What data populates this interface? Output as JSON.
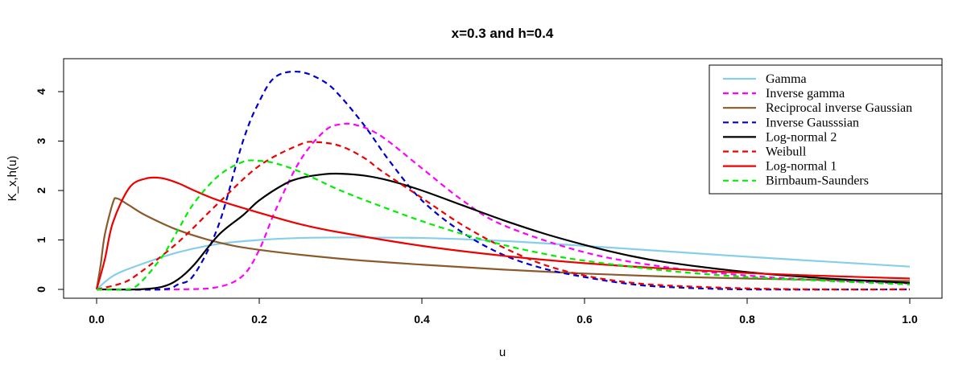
{
  "chart_data": {
    "type": "line",
    "title": "x=0.3 and h=0.4",
    "xlabel": "u",
    "ylabel": "K_x,h(u)",
    "xlim": [
      0.0,
      1.0
    ],
    "ylim": [
      0,
      4.5
    ],
    "x_ticks": [
      "0.0",
      "0.2",
      "0.4",
      "0.6",
      "0.8",
      "1.0"
    ],
    "y_ticks": [
      "0",
      "1",
      "2",
      "3",
      "4"
    ],
    "grid": false,
    "legend_position": "top-right",
    "series": [
      {
        "name": "Gamma",
        "color": "#87CEEB",
        "dash": "solid",
        "x": [
          0.0,
          0.02,
          0.05,
          0.1,
          0.15,
          0.2,
          0.25,
          0.3,
          0.4,
          0.5,
          0.6,
          0.7,
          0.8,
          0.9,
          1.0
        ],
        "y": [
          0.0,
          0.27,
          0.48,
          0.75,
          0.92,
          1.0,
          1.04,
          1.05,
          1.04,
          0.98,
          0.88,
          0.77,
          0.66,
          0.56,
          0.46
        ]
      },
      {
        "name": "Inverse gamma",
        "color": "#FF00FF",
        "dash": "dashed",
        "x": [
          0.0,
          0.1,
          0.15,
          0.18,
          0.2,
          0.22,
          0.25,
          0.28,
          0.3,
          0.32,
          0.35,
          0.4,
          0.45,
          0.5,
          0.6,
          0.7,
          0.8,
          0.9,
          1.0
        ],
        "y": [
          0.0,
          0.0,
          0.05,
          0.28,
          0.8,
          1.6,
          2.6,
          3.2,
          3.34,
          3.32,
          3.1,
          2.45,
          1.8,
          1.3,
          0.75,
          0.45,
          0.28,
          0.18,
          0.12
        ]
      },
      {
        "name": "Reciprocal inverse Gaussian",
        "color": "#8B5A2B",
        "dash": "solid",
        "x": [
          0.0,
          0.005,
          0.01,
          0.02,
          0.025,
          0.04,
          0.06,
          0.1,
          0.15,
          0.2,
          0.3,
          0.4,
          0.5,
          0.6,
          0.7,
          0.8,
          0.9,
          1.0
        ],
        "y": [
          0.0,
          0.5,
          1.1,
          1.75,
          1.84,
          1.7,
          1.5,
          1.2,
          0.95,
          0.8,
          0.62,
          0.5,
          0.4,
          0.32,
          0.26,
          0.22,
          0.19,
          0.17
        ]
      },
      {
        "name": "Inverse Gausssian",
        "color": "#0000CD",
        "dash": "dashed",
        "x": [
          0.0,
          0.08,
          0.1,
          0.12,
          0.15,
          0.18,
          0.2,
          0.22,
          0.25,
          0.28,
          0.3,
          0.33,
          0.36,
          0.4,
          0.45,
          0.5,
          0.55,
          0.6,
          0.65,
          0.7,
          0.8,
          1.0
        ],
        "y": [
          0.0,
          0.0,
          0.1,
          0.3,
          1.3,
          3.0,
          3.8,
          4.3,
          4.4,
          4.2,
          3.9,
          3.3,
          2.6,
          1.8,
          1.15,
          0.7,
          0.42,
          0.25,
          0.12,
          0.05,
          0.0,
          0.0
        ]
      },
      {
        "name": "Log-normal 2",
        "color": "#000000",
        "dash": "solid",
        "x": [
          0.0,
          0.05,
          0.08,
          0.1,
          0.12,
          0.15,
          0.18,
          0.2,
          0.23,
          0.25,
          0.28,
          0.3,
          0.33,
          0.36,
          0.4,
          0.45,
          0.5,
          0.55,
          0.6,
          0.65,
          0.7,
          0.8,
          0.9,
          1.0
        ],
        "y": [
          0.0,
          0.0,
          0.05,
          0.2,
          0.5,
          1.1,
          1.5,
          1.8,
          2.12,
          2.25,
          2.33,
          2.34,
          2.3,
          2.2,
          2.0,
          1.7,
          1.4,
          1.13,
          0.9,
          0.7,
          0.55,
          0.35,
          0.22,
          0.13
        ]
      },
      {
        "name": "Weibull",
        "color": "#EE0000",
        "dash": "dashed",
        "x": [
          0.0,
          0.03,
          0.05,
          0.1,
          0.15,
          0.2,
          0.25,
          0.27,
          0.3,
          0.33,
          0.35,
          0.4,
          0.45,
          0.5,
          0.55,
          0.6,
          0.65,
          0.7,
          0.8,
          0.9,
          1.0
        ],
        "y": [
          0.0,
          0.12,
          0.3,
          0.95,
          1.75,
          2.5,
          2.93,
          2.98,
          2.9,
          2.65,
          2.4,
          1.85,
          1.3,
          0.85,
          0.5,
          0.28,
          0.15,
          0.08,
          0.02,
          0.0,
          0.0
        ]
      },
      {
        "name": "Log-normal 1",
        "color": "#EE0000",
        "dash": "solid",
        "x": [
          0.0,
          0.01,
          0.02,
          0.04,
          0.06,
          0.08,
          0.1,
          0.12,
          0.15,
          0.2,
          0.25,
          0.3,
          0.4,
          0.5,
          0.6,
          0.7,
          0.8,
          0.9,
          1.0
        ],
        "y": [
          0.0,
          0.6,
          1.35,
          2.05,
          2.24,
          2.25,
          2.15,
          2.0,
          1.8,
          1.55,
          1.32,
          1.15,
          0.88,
          0.68,
          0.53,
          0.42,
          0.33,
          0.27,
          0.22
        ]
      },
      {
        "name": "Birnbaum-Saunders",
        "color": "#00EE00",
        "dash": "dashed",
        "x": [
          0.0,
          0.03,
          0.05,
          0.08,
          0.1,
          0.12,
          0.15,
          0.18,
          0.2,
          0.22,
          0.25,
          0.3,
          0.35,
          0.4,
          0.45,
          0.5,
          0.55,
          0.6,
          0.7,
          0.8,
          0.9,
          1.0
        ],
        "y": [
          0.0,
          0.0,
          0.08,
          0.65,
          1.2,
          1.75,
          2.3,
          2.58,
          2.6,
          2.55,
          2.38,
          2.0,
          1.68,
          1.38,
          1.12,
          0.9,
          0.72,
          0.58,
          0.38,
          0.25,
          0.17,
          0.1
        ]
      }
    ]
  }
}
